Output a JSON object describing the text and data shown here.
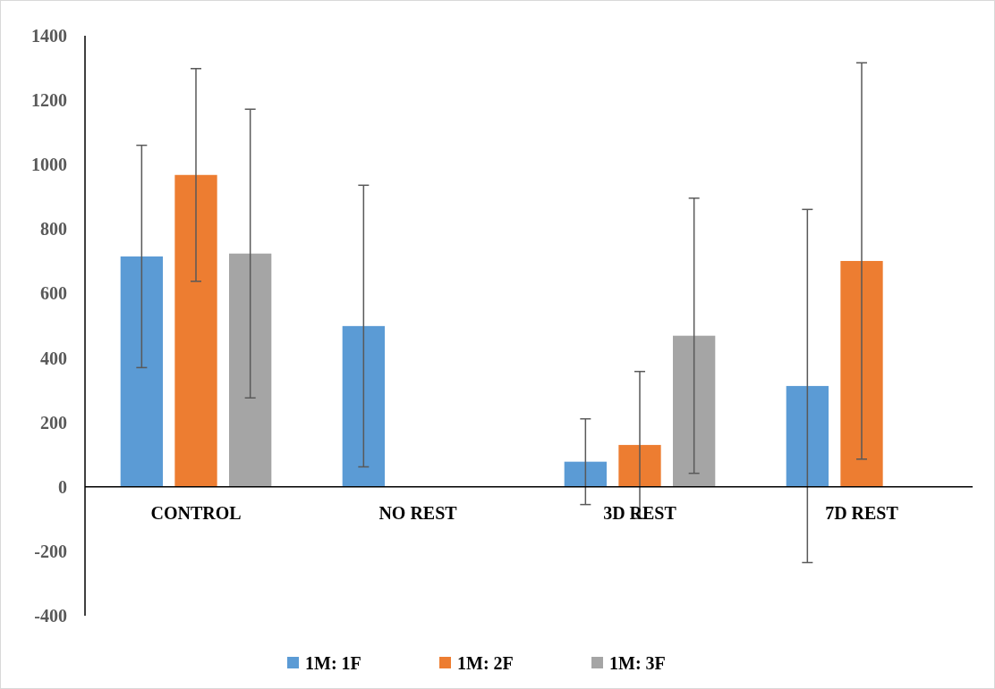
{
  "chart_data": {
    "type": "bar",
    "categories": [
      "CONTROL",
      "NO REST",
      "3D REST",
      "7D REST"
    ],
    "series": [
      {
        "name": "1M: 1F",
        "color": "#5b9bd5",
        "values": [
          715,
          499,
          78,
          313
        ],
        "errors": [
          345,
          437,
          133,
          548
        ]
      },
      {
        "name": "1M: 2F",
        "color": "#ed7d31",
        "values": [
          968,
          0,
          130,
          701
        ],
        "errors": [
          330,
          null,
          228,
          615
        ]
      },
      {
        "name": "1M: 3F",
        "color": "#a5a5a5",
        "values": [
          724,
          0,
          469,
          0
        ],
        "errors": [
          448,
          null,
          427,
          null
        ]
      }
    ],
    "ylim": [
      -400,
      1400
    ],
    "yticks": [
      -400,
      -200,
      0,
      200,
      400,
      600,
      800,
      1000,
      1200,
      1400
    ],
    "grid": false,
    "legend": "bottom"
  }
}
